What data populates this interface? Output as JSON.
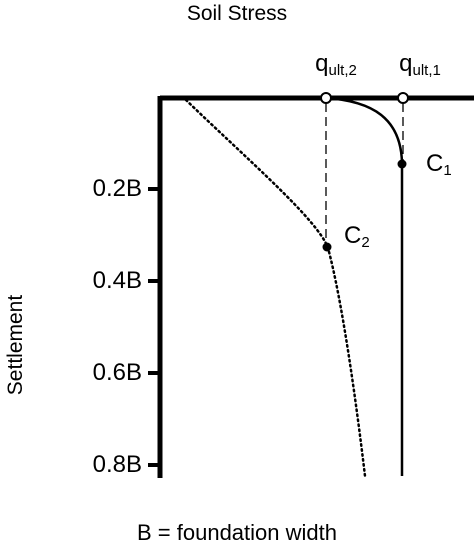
{
  "title": "Soil Stress",
  "ylabel": "Settlement",
  "caption": "B = foundation width",
  "ticks": [
    {
      "label": "0.2B",
      "value": 0.2
    },
    {
      "label": "0.4B",
      "value": 0.4
    },
    {
      "label": "0.6B",
      "value": 0.6
    },
    {
      "label": "0.8B",
      "value": 0.8
    }
  ],
  "qult2": {
    "main": "q",
    "sub": "ult,2"
  },
  "qult1": {
    "main": "q",
    "sub": "ult,1"
  },
  "c1": {
    "main": "C",
    "sub": "1"
  },
  "c2": {
    "main": "C",
    "sub": "2"
  }
}
